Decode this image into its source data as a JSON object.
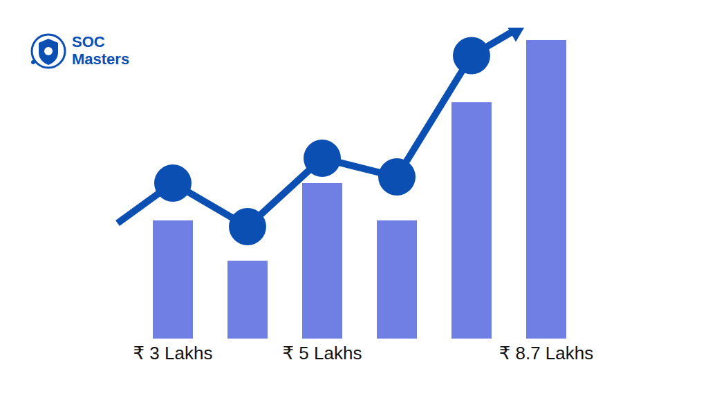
{
  "chart_data": {
    "type": "bar",
    "title": "SOC Masters",
    "categories": [
      "₹ 3 Lakhs",
      null,
      "₹ 5 Lakhs",
      null,
      null,
      "₹ 8.7 Lakhs"
    ],
    "series": [
      {
        "type": "bar",
        "color": "#6f7fe3",
        "values": [
          38,
          25,
          50,
          38,
          76,
          96
        ]
      },
      {
        "type": "line",
        "color": "#0b4fb3",
        "marker": "circle",
        "values": [
          50,
          36,
          58,
          52,
          91,
          null
        ]
      }
    ],
    "ylim": [
      0,
      100
    ],
    "tick_labels": "x"
  }
}
